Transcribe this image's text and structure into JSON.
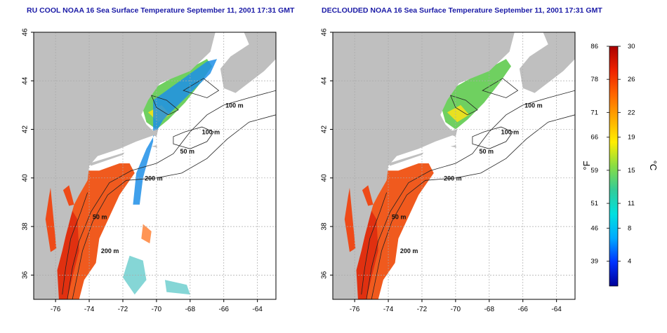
{
  "left_panel": {
    "title": "RU COOL NOAA 16 Sea Surface Temperature September 11, 2001 17:31 GMT"
  },
  "right_panel": {
    "title": "DECLOUDED NOAA 16 Sea Surface Temperature September 11, 2001 17:31 GMT"
  },
  "axes": {
    "lon_ticks": [
      "-76",
      "-74",
      "-72",
      "-70",
      "-68",
      "-66",
      "-64"
    ],
    "lat_ticks": [
      "36",
      "38",
      "40",
      "42",
      "44",
      "46"
    ],
    "lon_range": [
      -77.3,
      -62.9
    ],
    "lat_range": [
      35.0,
      46.0
    ]
  },
  "contour_labels": [
    {
      "text": "100 m",
      "lon": -65.9,
      "lat": 42.9
    },
    {
      "text": "100 m",
      "lon": -67.3,
      "lat": 41.8
    },
    {
      "text": "50 m",
      "lon": -68.6,
      "lat": 41.0
    },
    {
      "text": "200 m",
      "lon": -70.7,
      "lat": 39.9
    },
    {
      "text": "50 m",
      "lon": -73.8,
      "lat": 38.3
    },
    {
      "text": "200 m",
      "lon": -73.3,
      "lat": 36.9
    }
  ],
  "colorbar": {
    "fahrenheit_unit": "°F",
    "celsius_unit": "°C",
    "fahrenheit_ticks": [
      "86",
      "78",
      "71",
      "66",
      "59",
      "51",
      "46",
      "39"
    ],
    "celsius_ticks": [
      "30",
      "26",
      "22",
      "19",
      "15",
      "11",
      "8",
      "4"
    ],
    "celsius_values": [
      30,
      26,
      22,
      19,
      15,
      11,
      8,
      4
    ],
    "range_c": [
      1,
      30
    ],
    "colors": [
      "#000099",
      "#0033ff",
      "#00aaff",
      "#00e0e0",
      "#33cc99",
      "#88dd44",
      "#ffee00",
      "#ffaa00",
      "#ff6600",
      "#ee2200",
      "#aa0000"
    ]
  },
  "colors": {
    "land": "#bfbfbf",
    "grid": "#aaaaaa",
    "title": "#1a1aa6"
  }
}
